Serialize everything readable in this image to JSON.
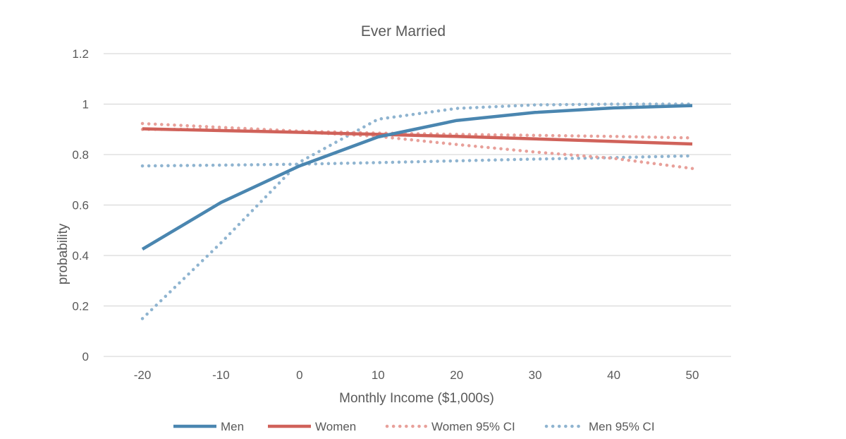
{
  "chart_data": {
    "type": "line",
    "title": "Ever  Married",
    "xlabel": "Monthly Income ($1,000s)",
    "ylabel": "probability",
    "x": [
      -20,
      -10,
      0,
      10,
      20,
      30,
      40,
      50
    ],
    "x_tick_labels": [
      "-20",
      "-10",
      "0",
      "10",
      "20",
      "30",
      "40",
      "50"
    ],
    "y_tick_labels": [
      "0",
      "0.2",
      "0.4",
      "0.6",
      "0.8",
      "1",
      "1.2"
    ],
    "ylim": [
      0,
      1.2
    ],
    "grid": true,
    "legend_position": "bottom",
    "series": [
      {
        "name": "Men",
        "style": "solid",
        "color": "#4a86b0",
        "values": [
          0.425,
          0.61,
          0.755,
          0.87,
          0.935,
          0.967,
          0.985,
          0.994
        ]
      },
      {
        "name": "Women",
        "style": "solid",
        "color": "#d0625a",
        "values": [
          0.902,
          0.895,
          0.888,
          0.88,
          0.872,
          0.862,
          0.852,
          0.842
        ]
      },
      {
        "name": "Women 95% CI",
        "style": "dotted",
        "color": "#e8a09a",
        "band": "upper",
        "values": [
          0.923,
          0.908,
          0.893,
          0.885,
          0.88,
          0.876,
          0.872,
          0.866
        ]
      },
      {
        "name": "Women 95% CI",
        "style": "dotted",
        "color": "#e8a09a",
        "band": "lower",
        "values": [
          0.9,
          0.9,
          0.89,
          0.872,
          0.84,
          0.81,
          0.785,
          0.745
        ]
      },
      {
        "name": "Men 95% CI",
        "style": "dotted",
        "color": "#8fb4d0",
        "band": "upper",
        "values": [
          0.15,
          0.45,
          0.77,
          0.94,
          0.983,
          0.997,
          1.0,
          1.0
        ]
      },
      {
        "name": "Men 95% CI",
        "style": "dotted",
        "color": "#8fb4d0",
        "band": "lower",
        "values": [
          0.755,
          0.758,
          0.762,
          0.768,
          0.775,
          0.782,
          0.788,
          0.795
        ]
      }
    ],
    "legend": [
      {
        "label": "Men",
        "style": "solid",
        "color": "#4a86b0"
      },
      {
        "label": "Women",
        "style": "solid",
        "color": "#d0625a"
      },
      {
        "label": "Women 95% CI",
        "style": "dotted",
        "color": "#e8a09a"
      },
      {
        "label": "Men 95% CI",
        "style": "dotted",
        "color": "#8fb4d0"
      }
    ]
  }
}
